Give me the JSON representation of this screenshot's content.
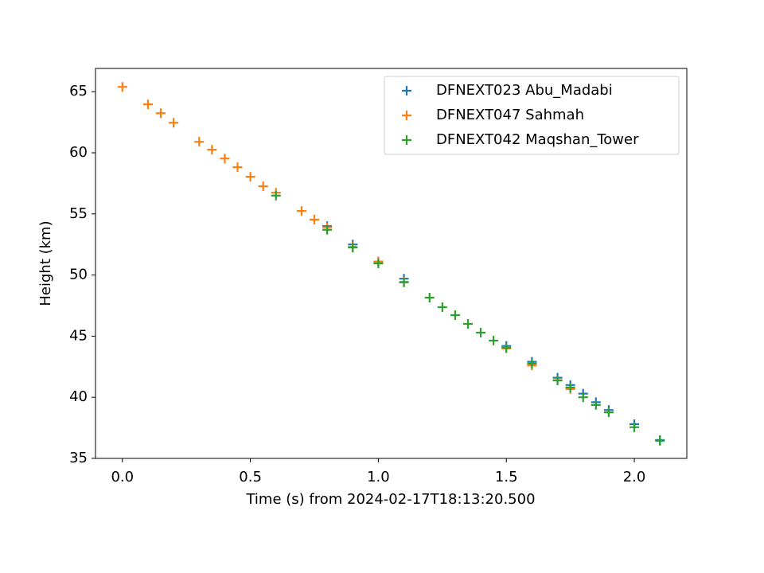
{
  "chart_data": {
    "type": "scatter",
    "xlabel": "Time (s) from 2024-02-17T18:13:20.500",
    "ylabel": "Height (km)",
    "xlim": [
      -0.105,
      2.205
    ],
    "ylim": [
      35,
      66.9
    ],
    "xticks": [
      {
        "value": 0,
        "label": "0.0"
      },
      0.5,
      {
        "value": 1,
        "label": "1.0"
      },
      1.5,
      {
        "value": 2,
        "label": "2.0"
      }
    ],
    "yticks": [
      35,
      40,
      45,
      50,
      55,
      60,
      65
    ],
    "legend": "upper right",
    "series": [
      {
        "name": "DFNEXT023 Abu_Madabi",
        "color": "#1f77b4",
        "x": [
          0.8,
          0.9,
          1.0,
          1.1,
          1.5,
          1.6,
          1.7,
          1.75,
          1.8,
          1.85,
          1.9,
          2.0,
          2.1
        ],
        "values": [
          54.0,
          52.5,
          51.1,
          49.7,
          44.2,
          42.9,
          41.6,
          41.0,
          40.3,
          39.6,
          38.96,
          37.8,
          36.5
        ]
      },
      {
        "name": "DFNEXT047 Sahmah",
        "color": "#ff7f0e",
        "x": [
          0.0,
          0.1,
          0.15,
          0.2,
          0.3,
          0.35,
          0.4,
          0.45,
          0.5,
          0.55,
          0.6,
          0.7,
          0.75,
          0.8,
          0.9,
          1.0,
          1.1,
          1.5,
          1.6,
          1.7,
          1.75
        ],
        "values": [
          65.39,
          63.96,
          63.24,
          62.46,
          60.9,
          60.25,
          59.53,
          58.82,
          58.04,
          57.26,
          56.74,
          55.24,
          54.53,
          53.9,
          52.3,
          51.1,
          49.45,
          44.0,
          42.6,
          41.4,
          40.67
        ]
      },
      {
        "name": "DFNEXT042 Maqshan_Tower",
        "color": "#2ca02c",
        "x": [
          0.6,
          0.8,
          0.9,
          1.0,
          1.1,
          1.2,
          1.25,
          1.3,
          1.35,
          1.4,
          1.45,
          1.5,
          1.6,
          1.7,
          1.75,
          1.8,
          1.85,
          1.9,
          2.0,
          2.1
        ],
        "values": [
          56.5,
          53.7,
          52.25,
          50.95,
          49.4,
          48.15,
          47.37,
          46.72,
          46.0,
          45.29,
          44.64,
          44.05,
          42.75,
          41.38,
          40.8,
          40.0,
          39.37,
          38.77,
          37.55,
          36.44
        ]
      }
    ]
  }
}
